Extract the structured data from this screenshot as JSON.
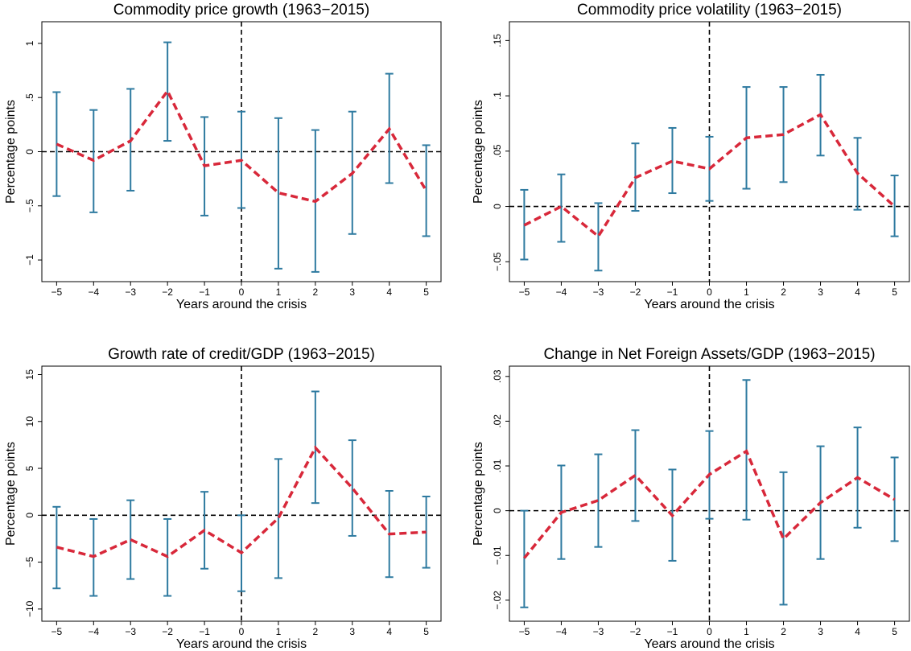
{
  "chart_data": [
    {
      "type": "errorbar",
      "title": "Commodity price growth (1963−2015)",
      "xlabel": "Years around the crisis",
      "ylabel": "Percentage points",
      "x": [
        -5,
        -4,
        -3,
        -2,
        -1,
        0,
        1,
        2,
        3,
        4,
        5
      ],
      "values": [
        0.07,
        -0.08,
        0.1,
        0.56,
        -0.13,
        -0.08,
        -0.38,
        -0.46,
        -0.2,
        0.21,
        -0.36
      ],
      "lower": [
        -0.41,
        -0.56,
        -0.36,
        0.1,
        -0.59,
        -0.52,
        -1.08,
        -1.11,
        -0.76,
        -0.29,
        -0.78
      ],
      "upper": [
        0.55,
        0.385,
        0.58,
        1.01,
        0.32,
        0.37,
        0.31,
        0.2,
        0.37,
        0.72,
        0.06
      ],
      "xlim": [
        -5.4,
        5.4
      ],
      "ylim": [
        -1.2,
        1.2
      ],
      "xticks": [
        {
          "value": -5,
          "label": "−5"
        },
        {
          "value": -4,
          "label": "−4"
        },
        {
          "value": -3,
          "label": "−3"
        },
        {
          "value": -2,
          "label": "−2"
        },
        {
          "value": -1,
          "label": "−1"
        },
        0,
        1,
        2,
        3,
        4,
        5
      ],
      "yticks": [
        1,
        {
          "value": 0.5,
          "label": ".5"
        },
        0,
        {
          "value": -0.5,
          "label": "−.5"
        },
        {
          "value": -1,
          "label": "−1"
        }
      ],
      "line_color": "#d8283a",
      "bar_color": "#2e7aa0",
      "vline": 0,
      "hline": 0
    },
    {
      "type": "errorbar",
      "title": "Commodity price volatility (1963−2015)",
      "xlabel": "Years around the crisis",
      "ylabel": "Percentage points",
      "x": [
        -5,
        -4,
        -3,
        -2,
        -1,
        0,
        1,
        2,
        3,
        4,
        5
      ],
      "values": [
        -0.017,
        0.0,
        -0.027,
        0.026,
        0.041,
        0.034,
        0.062,
        0.065,
        0.083,
        0.03,
        0.0
      ],
      "lower": [
        -0.048,
        -0.032,
        -0.058,
        -0.004,
        0.012,
        0.005,
        0.016,
        0.022,
        0.046,
        -0.003,
        -0.027
      ],
      "upper": [
        0.015,
        0.029,
        0.003,
        0.057,
        0.071,
        0.063,
        0.108,
        0.108,
        0.119,
        0.062,
        0.028
      ],
      "xlim": [
        -5.4,
        5.4
      ],
      "ylim": [
        -0.068,
        0.167
      ],
      "xticks": [
        {
          "value": -5,
          "label": "−5"
        },
        {
          "value": -4,
          "label": "−4"
        },
        {
          "value": -3,
          "label": "−3"
        },
        {
          "value": -2,
          "label": "−2"
        },
        {
          "value": -1,
          "label": "−1"
        },
        0,
        1,
        2,
        3,
        4,
        5
      ],
      "yticks": [
        {
          "value": 0.15,
          "label": ".15"
        },
        {
          "value": 0.1,
          "label": ".1"
        },
        {
          "value": 0.05,
          "label": ".05"
        },
        0,
        {
          "value": -0.05,
          "label": "−.05"
        }
      ],
      "line_color": "#d8283a",
      "bar_color": "#2e7aa0",
      "vline": 0,
      "hline": 0
    },
    {
      "type": "errorbar",
      "title": "Growth rate of credit/GDP (1963−2015)",
      "xlabel": "Years around the crisis",
      "ylabel": "Percentage points",
      "x": [
        -5,
        -4,
        -3,
        -2,
        -1,
        0,
        1,
        2,
        3,
        4,
        5
      ],
      "values": [
        -3.4,
        -4.4,
        -2.6,
        -4.4,
        -1.6,
        -4.0,
        -0.3,
        7.2,
        2.9,
        -2.0,
        -1.8
      ],
      "lower": [
        -7.8,
        -8.6,
        -6.8,
        -8.6,
        -5.7,
        -8.1,
        -6.7,
        1.3,
        -2.2,
        -6.6,
        -5.6
      ],
      "upper": [
        0.9,
        -0.4,
        1.6,
        -0.4,
        2.5,
        0.0,
        6.0,
        13.2,
        8.0,
        2.6,
        2.0
      ],
      "xlim": [
        -5.4,
        5.4
      ],
      "ylim": [
        -11.3,
        15.9
      ],
      "xticks": [
        {
          "value": -5,
          "label": "−5"
        },
        {
          "value": -4,
          "label": "−4"
        },
        {
          "value": -3,
          "label": "−3"
        },
        {
          "value": -2,
          "label": "−2"
        },
        {
          "value": -1,
          "label": "−1"
        },
        0,
        1,
        2,
        3,
        4,
        5
      ],
      "yticks": [
        15,
        10,
        5,
        0,
        {
          "value": -5,
          "label": "−5"
        },
        {
          "value": -10,
          "label": "−10"
        }
      ],
      "line_color": "#d8283a",
      "bar_color": "#2e7aa0",
      "vline": 0,
      "hline": 0
    },
    {
      "type": "errorbar",
      "title": "Change in Net Foreign Assets/GDP (1963−2015)",
      "xlabel": "Years around the crisis",
      "ylabel": "Percentage points",
      "x": [
        -5,
        -4,
        -3,
        -2,
        -1,
        0,
        1,
        2,
        3,
        4,
        5
      ],
      "values": [
        -0.0106,
        -0.0004,
        0.0023,
        0.0079,
        -0.0011,
        0.0081,
        0.0133,
        -0.0063,
        0.0018,
        0.0074,
        0.0025
      ],
      "lower": [
        -0.0216,
        -0.0108,
        -0.0081,
        -0.0023,
        -0.0112,
        -0.0018,
        -0.002,
        -0.021,
        -0.0108,
        -0.0038,
        -0.0068
      ],
      "upper": [
        0.0,
        0.0101,
        0.0126,
        0.018,
        0.0092,
        0.0178,
        0.0292,
        0.0086,
        0.0144,
        0.0186,
        0.0119
      ],
      "xlim": [
        -5.4,
        5.4
      ],
      "ylim": [
        -0.0247,
        0.0323
      ],
      "xticks": [
        {
          "value": -5,
          "label": "−5"
        },
        {
          "value": -4,
          "label": "−4"
        },
        {
          "value": -3,
          "label": "−3"
        },
        {
          "value": -2,
          "label": "−2"
        },
        {
          "value": -1,
          "label": "−1"
        },
        0,
        1,
        2,
        3,
        4,
        5
      ],
      "yticks": [
        {
          "value": 0.03,
          "label": ".03"
        },
        {
          "value": 0.02,
          "label": ".02"
        },
        {
          "value": 0.01,
          "label": ".01"
        },
        0,
        {
          "value": -0.01,
          "label": "−.01"
        },
        {
          "value": -0.02,
          "label": "−.02"
        }
      ],
      "line_color": "#d8283a",
      "bar_color": "#2e7aa0",
      "vline": 0,
      "hline": 0
    }
  ]
}
